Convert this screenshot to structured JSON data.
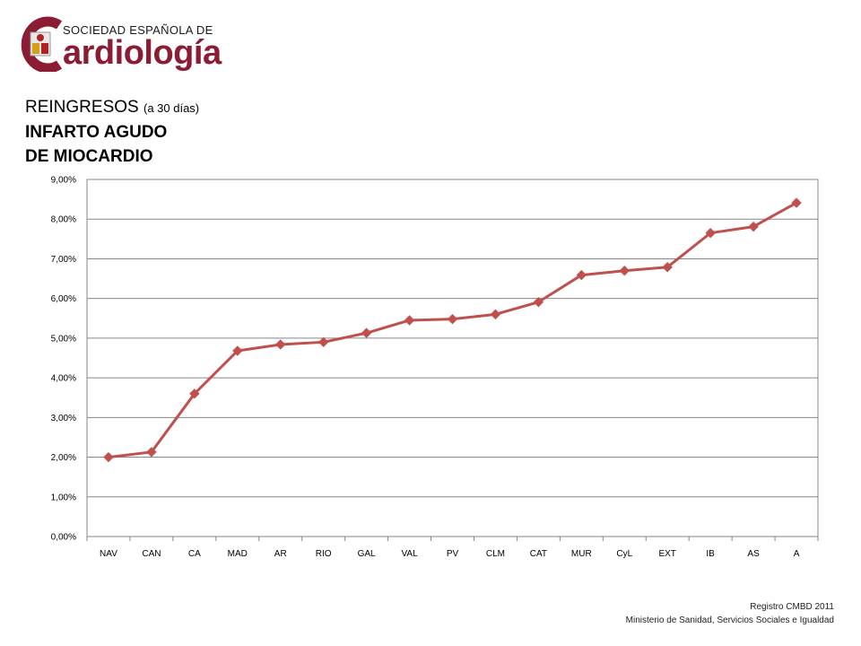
{
  "logo": {
    "top_text": "SOCIEDAD ESPAÑOLA DE",
    "main_text": "ardiología",
    "brand_color": "#8b1c33"
  },
  "heading": {
    "line1_main": "REINGRESOS",
    "line1_small": "(a 30 días)",
    "line2": "INFARTO AGUDO",
    "line3": "DE MIOCARDIO"
  },
  "footer": {
    "line1": "Registro CMBD 2011",
    "line2": "Ministerio de Sanidad, Servicios Sociales e Igualdad"
  },
  "chart_data": {
    "type": "line",
    "categories": [
      "NAV",
      "CAN",
      "CA",
      "MAD",
      "AR",
      "RIO",
      "GAL",
      "VAL",
      "PV",
      "CLM",
      "CAT",
      "MUR",
      "CyL",
      "EXT",
      "IB",
      "AS",
      "A"
    ],
    "series": [
      {
        "values": [
          2.0,
          2.13,
          3.6,
          4.68,
          4.84,
          4.9,
          5.13,
          5.45,
          5.48,
          5.6,
          5.91,
          6.59,
          6.7,
          6.79,
          7.65,
          7.81,
          8.41
        ],
        "color": "#c0504d"
      }
    ],
    "ylim": [
      0,
      9
    ],
    "yticks": [
      0,
      1,
      2,
      3,
      4,
      5,
      6,
      7,
      8,
      9
    ],
    "ytick_labels": [
      "0,00%",
      "1,00%",
      "2,00%",
      "3,00%",
      "4,00%",
      "5,00%",
      "6,00%",
      "7,00%",
      "8,00%",
      "9,00%"
    ],
    "grid": true,
    "marker": "diamond",
    "xlabel": "",
    "ylabel": "",
    "title": ""
  }
}
